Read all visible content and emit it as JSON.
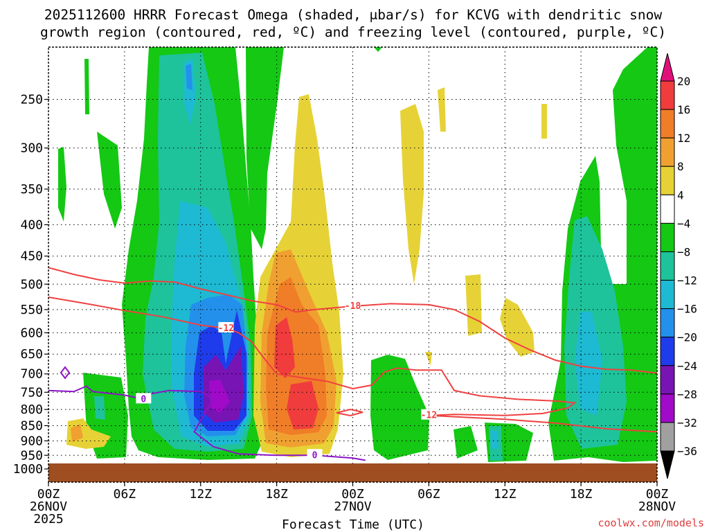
{
  "chart_data": {
    "type": "heatmap",
    "title_line1": "2025112600 HRRR Forecast Omega (shaded, μbar/s) for KCVG with dendritic snow",
    "title_line2": "growth region (contoured, red, ºC) and freezing level (contoured, purple, ºC)",
    "xlabel": "Forecast Time (UTC)",
    "ylabel": "",
    "watermark": "coolwx.com/models",
    "x_hours_range": [
      0,
      48
    ],
    "y_levels": [
      250,
      300,
      350,
      400,
      450,
      500,
      550,
      600,
      650,
      700,
      750,
      800,
      850,
      900,
      950,
      1000
    ],
    "x_ticks": [
      {
        "hour": 0,
        "label": "00Z",
        "date": "26NOV",
        "year": "2025"
      },
      {
        "hour": 6,
        "label": "06Z"
      },
      {
        "hour": 12,
        "label": "12Z"
      },
      {
        "hour": 18,
        "label": "18Z"
      },
      {
        "hour": 24,
        "label": "00Z",
        "date": "27NOV"
      },
      {
        "hour": 30,
        "label": "06Z"
      },
      {
        "hour": 36,
        "label": "12Z"
      },
      {
        "hour": 42,
        "label": "18Z"
      },
      {
        "hour": 48,
        "label": "00Z",
        "date": "28NOV"
      }
    ],
    "colorbar": {
      "labels": [
        "20",
        "16",
        "12",
        "8",
        "4",
        "−4",
        "−8",
        "−12",
        "−16",
        "−20",
        "−24",
        "−28",
        "−32",
        "−36"
      ],
      "bins": [
        {
          "range": ">20",
          "color": "#e0107a"
        },
        {
          "range": "16 to 20",
          "color": "#f03c3c"
        },
        {
          "range": "12 to 16",
          "color": "#f07d28"
        },
        {
          "range": "8 to 12",
          "color": "#f0a030"
        },
        {
          "range": "4 to 8",
          "color": "#e6d236"
        },
        {
          "range": "-4 to 4",
          "color": "#ffffff"
        },
        {
          "range": "-8 to -4",
          "color": "#14c814"
        },
        {
          "range": "-12 to -8",
          "color": "#1ec39b"
        },
        {
          "range": "-16 to -12",
          "color": "#1eb9d2"
        },
        {
          "range": "-20 to -16",
          "color": "#2391eb"
        },
        {
          "range": "-24 to -20",
          "color": "#1e3ceb"
        },
        {
          "range": "-28 to -24",
          "color": "#7814b4"
        },
        {
          "range": "-32 to -28",
          "color": "#a00ac8"
        },
        {
          "range": "-36 to -32",
          "color": "#a0a0a0"
        },
        {
          "range": "<-36",
          "color": "#000000"
        }
      ]
    },
    "contours": [
      {
        "name": "dendritic snow growth -18C",
        "color": "#f04040",
        "label": "-18",
        "points": [
          [
            0,
            470
          ],
          [
            2,
            482
          ],
          [
            4,
            492
          ],
          [
            6,
            498
          ],
          [
            8,
            494
          ],
          [
            10,
            496
          ],
          [
            12,
            509
          ],
          [
            14,
            520
          ],
          [
            16,
            532
          ],
          [
            18,
            540
          ],
          [
            19.5,
            555
          ],
          [
            21,
            550
          ],
          [
            24,
            543
          ],
          [
            27,
            538
          ],
          [
            30,
            540
          ],
          [
            32,
            550
          ],
          [
            34,
            575
          ],
          [
            36,
            612
          ],
          [
            38,
            640
          ],
          [
            40,
            665
          ],
          [
            42,
            680
          ],
          [
            44,
            688
          ],
          [
            46,
            690
          ],
          [
            48,
            698
          ]
        ]
      },
      {
        "name": "dendritic snow growth -12C",
        "color": "#f04040",
        "label": "-12",
        "points": [
          [
            0,
            525
          ],
          [
            3,
            538
          ],
          [
            6,
            552
          ],
          [
            9,
            565
          ],
          [
            12,
            583
          ],
          [
            14,
            590
          ],
          [
            15,
            600
          ],
          [
            16,
            620
          ],
          [
            17,
            660
          ],
          [
            18,
            700
          ],
          [
            20,
            710
          ],
          [
            22,
            720
          ],
          [
            24,
            740
          ],
          [
            25.5,
            730
          ],
          [
            26.5,
            695
          ],
          [
            27.5,
            685
          ],
          [
            29,
            690
          ],
          [
            31,
            690
          ],
          [
            32,
            745
          ],
          [
            34,
            760
          ],
          [
            37,
            770
          ],
          [
            40,
            775
          ],
          [
            41.5,
            780
          ],
          [
            41,
            795
          ],
          [
            39,
            812
          ],
          [
            36,
            818
          ],
          [
            32,
            815
          ],
          [
            30,
            818
          ],
          [
            32,
            822
          ],
          [
            36,
            830
          ],
          [
            40,
            842
          ],
          [
            44,
            860
          ],
          [
            48,
            870
          ]
        ]
      },
      {
        "name": "freezing level 0C",
        "color": "#8c14c8",
        "label": "0",
        "points": [
          [
            0,
            745
          ],
          [
            2,
            748
          ],
          [
            3,
            733
          ],
          [
            3.5,
            748
          ],
          [
            6,
            758
          ],
          [
            7.5,
            770
          ],
          [
            8,
            755
          ],
          [
            9.5,
            745
          ],
          [
            12,
            748
          ],
          [
            13,
            768
          ],
          [
            12.5,
            800
          ],
          [
            11.5,
            870
          ],
          [
            13,
            920
          ],
          [
            15,
            945
          ],
          [
            18,
            950
          ],
          [
            21,
            950
          ],
          [
            24,
            960
          ],
          [
            25,
            968
          ]
        ]
      }
    ]
  }
}
